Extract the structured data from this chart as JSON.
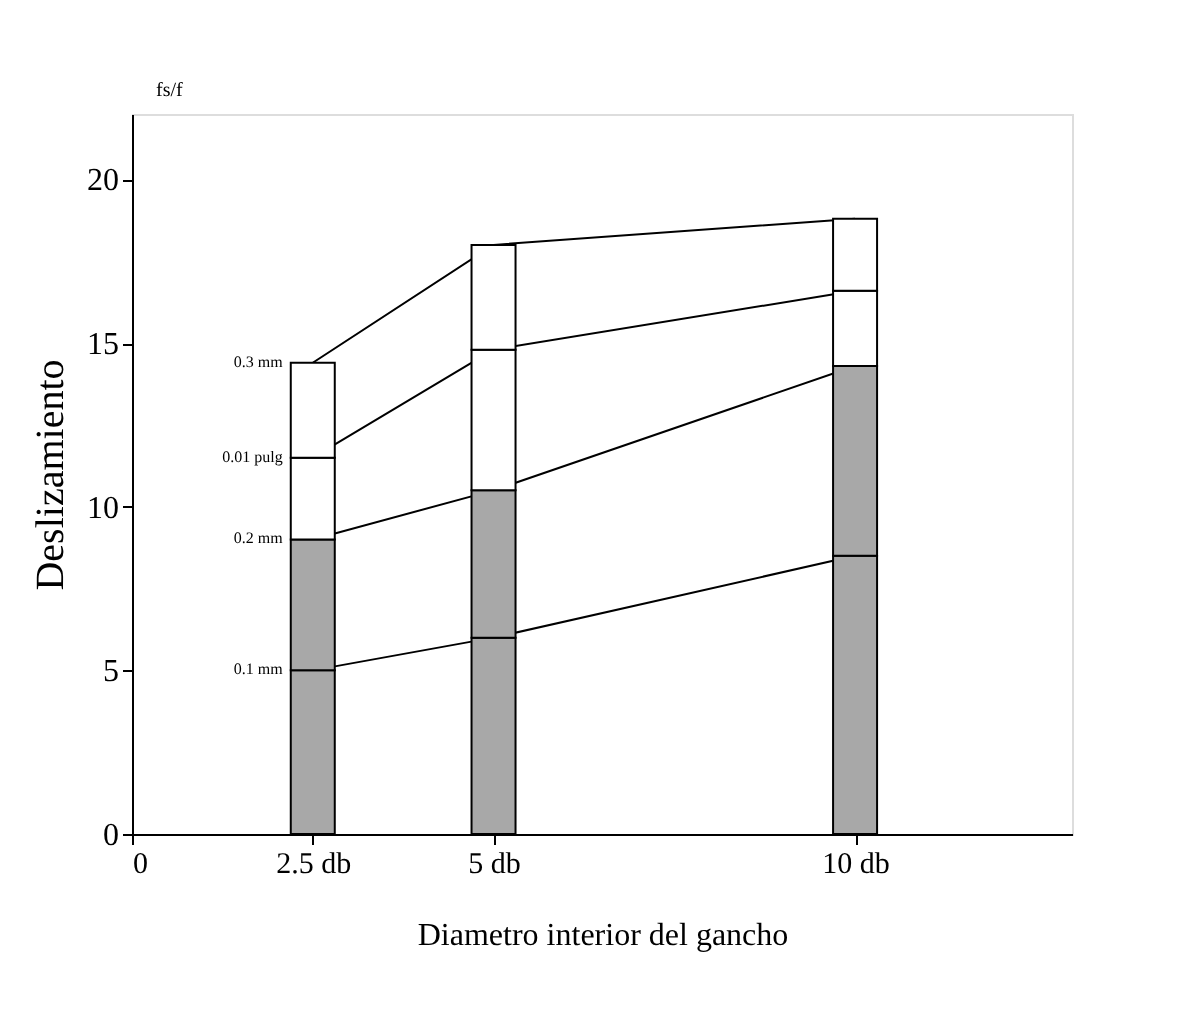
{
  "chart_data": {
    "type": "bar",
    "stacked": true,
    "xlabel": "Diametro interior del gancho",
    "ylabel": "Deslizamiento",
    "annotations": [
      "fs/f"
    ],
    "x": [
      2.5,
      5,
      10
    ],
    "xlim": [
      0,
      13
    ],
    "xticks": [
      0,
      {
        "value": 2.5,
        "label": "2.5 db"
      },
      {
        "value": 5,
        "label": "5 db"
      },
      {
        "value": 10,
        "label": "10 db"
      }
    ],
    "ylim": [
      0,
      22
    ],
    "yticks": [
      0,
      5,
      10,
      15,
      20
    ],
    "grid": false,
    "series": [
      {
        "name": "0.1 mm",
        "color": "#a8a8a8",
        "values": [
          5,
          6,
          8.5
        ]
      },
      {
        "name": "0.2 mm",
        "color": "#a8a8a8",
        "values": [
          4,
          4.5,
          5.8
        ]
      },
      {
        "name": "0.01 pulg",
        "color": "#ffffff",
        "values": [
          2.5,
          4.3,
          2.3
        ]
      },
      {
        "name": "0.3 mm",
        "color": "#ffffff",
        "values": [
          2.9,
          3.2,
          2.2
        ]
      }
    ]
  }
}
